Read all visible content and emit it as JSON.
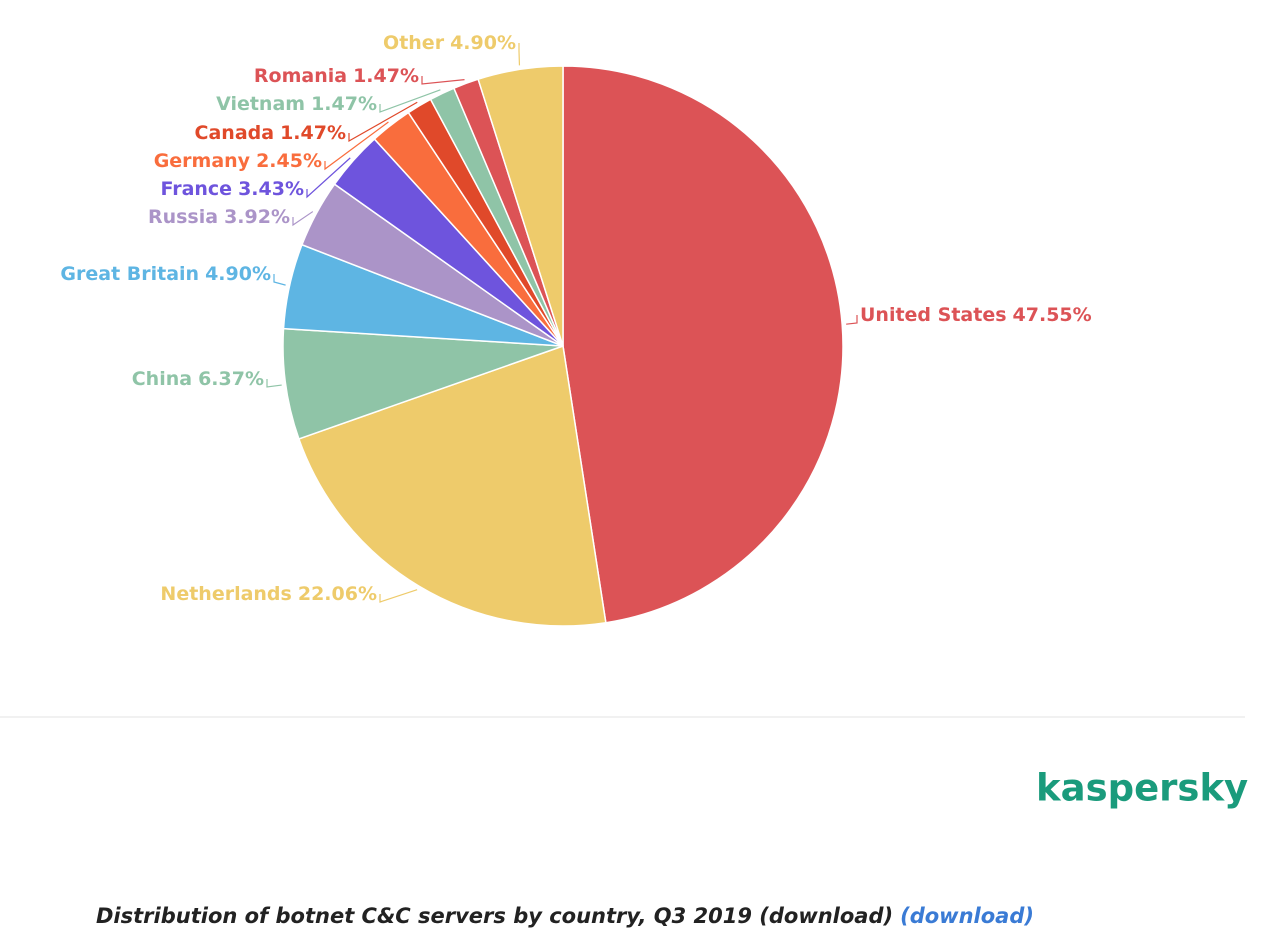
{
  "chart_data": {
    "type": "pie",
    "categories": [
      "United States",
      "Netherlands",
      "China",
      "Great Britain",
      "Russia",
      "France",
      "Germany",
      "Canada",
      "Vietnam",
      "Romania",
      "Other"
    ],
    "values": [
      47.55,
      22.06,
      6.37,
      4.9,
      3.92,
      3.43,
      2.45,
      1.47,
      1.47,
      1.47,
      4.9
    ],
    "value_labels": [
      "47.55%",
      "22.06%",
      "6.37%",
      "4.90%",
      "3.92%",
      "3.43%",
      "2.45%",
      "1.47%",
      "1.47%",
      "1.47%",
      "4.90%"
    ],
    "colors": [
      "#dc5356",
      "#eecb6b",
      "#8fc4a7",
      "#5eb5e3",
      "#ab94c8",
      "#6e54dd",
      "#f96d3d",
      "#e0492a",
      "#8fc4a7",
      "#dc5356",
      "#eecb6b"
    ]
  },
  "brand": "kaspersky",
  "caption": "Distribution of botnet C&C servers by country, Q3 2019 (download)",
  "caption_link": "(download)"
}
